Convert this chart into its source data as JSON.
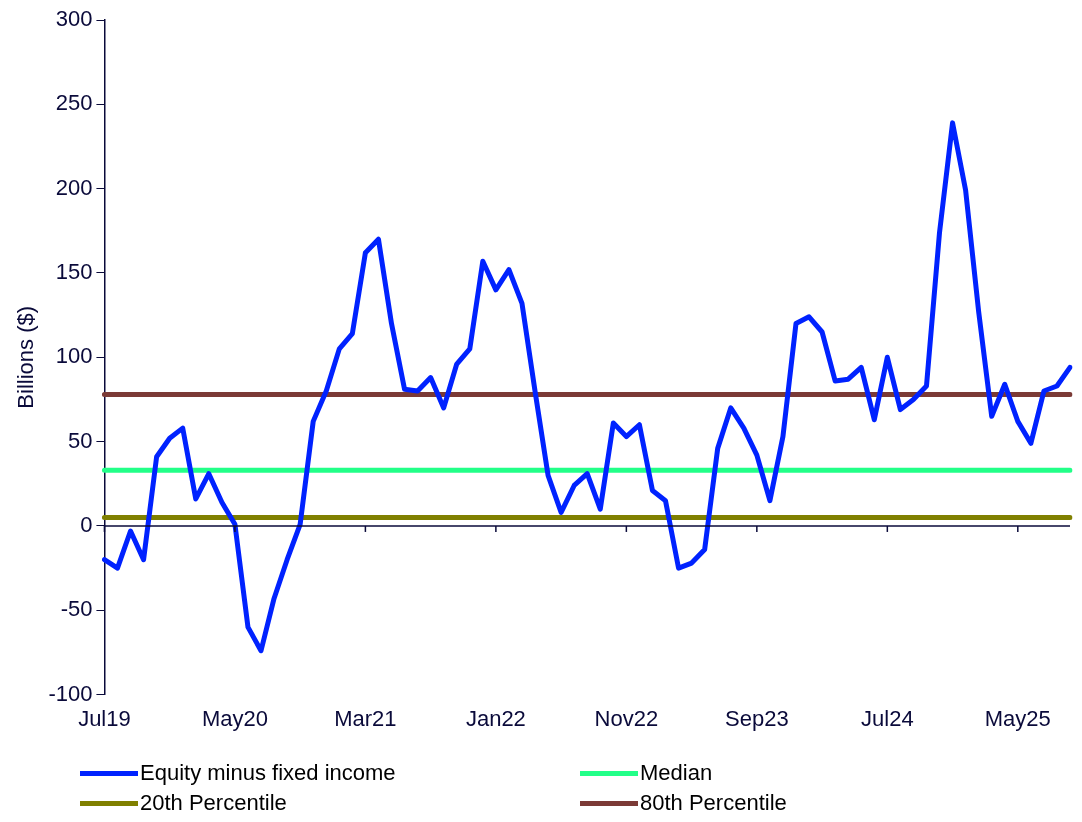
{
  "chart_data": {
    "type": "line",
    "ylabel": "Billions ($)",
    "categories": [
      "Jul19",
      null,
      null,
      null,
      null,
      null,
      null,
      null,
      null,
      null,
      "May20",
      null,
      null,
      null,
      null,
      null,
      null,
      null,
      null,
      null,
      "Mar21",
      null,
      null,
      null,
      null,
      null,
      null,
      null,
      null,
      null,
      "Jan22",
      null,
      null,
      null,
      null,
      null,
      null,
      null,
      null,
      null,
      "Nov22",
      null,
      null,
      null,
      null,
      null,
      null,
      null,
      null,
      null,
      "Sep23",
      null,
      null,
      null,
      null,
      null,
      null,
      null,
      null,
      null,
      "Jul24",
      null,
      null,
      null,
      null,
      null,
      null,
      null,
      null,
      null,
      "May25",
      null,
      null,
      null,
      null
    ],
    "series": [
      {
        "name": "Equity minus fixed income",
        "color": "#0022ff",
        "values": [
          -20,
          -25,
          -3,
          -20,
          41,
          52,
          58,
          16,
          31,
          14,
          1,
          -60,
          -74,
          -43,
          -20,
          1,
          62,
          80,
          105,
          114,
          162,
          170,
          120,
          81,
          80,
          88,
          70,
          96,
          105,
          157,
          140,
          152,
          132,
          80,
          30,
          8,
          24,
          31,
          10,
          61,
          53,
          60,
          21,
          15,
          -25,
          -22,
          -14,
          46,
          70,
          58,
          42,
          15,
          53,
          120,
          124,
          115,
          86,
          87,
          94,
          63,
          100,
          69,
          75,
          83,
          174,
          239,
          199,
          127,
          65,
          84,
          62,
          49,
          80,
          83,
          94
        ]
      },
      {
        "name": "Median",
        "color": "#22ff88",
        "values": [
          33,
          33,
          33,
          33,
          33,
          33,
          33,
          33,
          33,
          33,
          33,
          33,
          33,
          33,
          33,
          33,
          33,
          33,
          33,
          33,
          33,
          33,
          33,
          33,
          33,
          33,
          33,
          33,
          33,
          33,
          33,
          33,
          33,
          33,
          33,
          33,
          33,
          33,
          33,
          33,
          33,
          33,
          33,
          33,
          33,
          33,
          33,
          33,
          33,
          33,
          33,
          33,
          33,
          33,
          33,
          33,
          33,
          33,
          33,
          33,
          33,
          33,
          33,
          33,
          33,
          33,
          33,
          33,
          33,
          33,
          33,
          33,
          33,
          33,
          33
        ]
      },
      {
        "name": "20th Percentile",
        "color": "#808000",
        "values": [
          5,
          5,
          5,
          5,
          5,
          5,
          5,
          5,
          5,
          5,
          5,
          5,
          5,
          5,
          5,
          5,
          5,
          5,
          5,
          5,
          5,
          5,
          5,
          5,
          5,
          5,
          5,
          5,
          5,
          5,
          5,
          5,
          5,
          5,
          5,
          5,
          5,
          5,
          5,
          5,
          5,
          5,
          5,
          5,
          5,
          5,
          5,
          5,
          5,
          5,
          5,
          5,
          5,
          5,
          5,
          5,
          5,
          5,
          5,
          5,
          5,
          5,
          5,
          5,
          5,
          5,
          5,
          5,
          5,
          5,
          5,
          5,
          5,
          5,
          5
        ]
      },
      {
        "name": "80th Percentile",
        "color": "#7b3a36",
        "values": [
          78,
          78,
          78,
          78,
          78,
          78,
          78,
          78,
          78,
          78,
          78,
          78,
          78,
          78,
          78,
          78,
          78,
          78,
          78,
          78,
          78,
          78,
          78,
          78,
          78,
          78,
          78,
          78,
          78,
          78,
          78,
          78,
          78,
          78,
          78,
          78,
          78,
          78,
          78,
          78,
          78,
          78,
          78,
          78,
          78,
          78,
          78,
          78,
          78,
          78,
          78,
          78,
          78,
          78,
          78,
          78,
          78,
          78,
          78,
          78,
          78,
          78,
          78,
          78,
          78,
          78,
          78,
          78,
          78,
          78,
          78,
          78,
          78,
          78,
          78
        ]
      }
    ],
    "ylim": [
      -100,
      300
    ],
    "yticks": [
      -100,
      -50,
      0,
      50,
      100,
      150,
      200,
      250,
      300
    ],
    "grid": false,
    "legend": "bottom",
    "marker": "none",
    "line_style": "solid"
  }
}
